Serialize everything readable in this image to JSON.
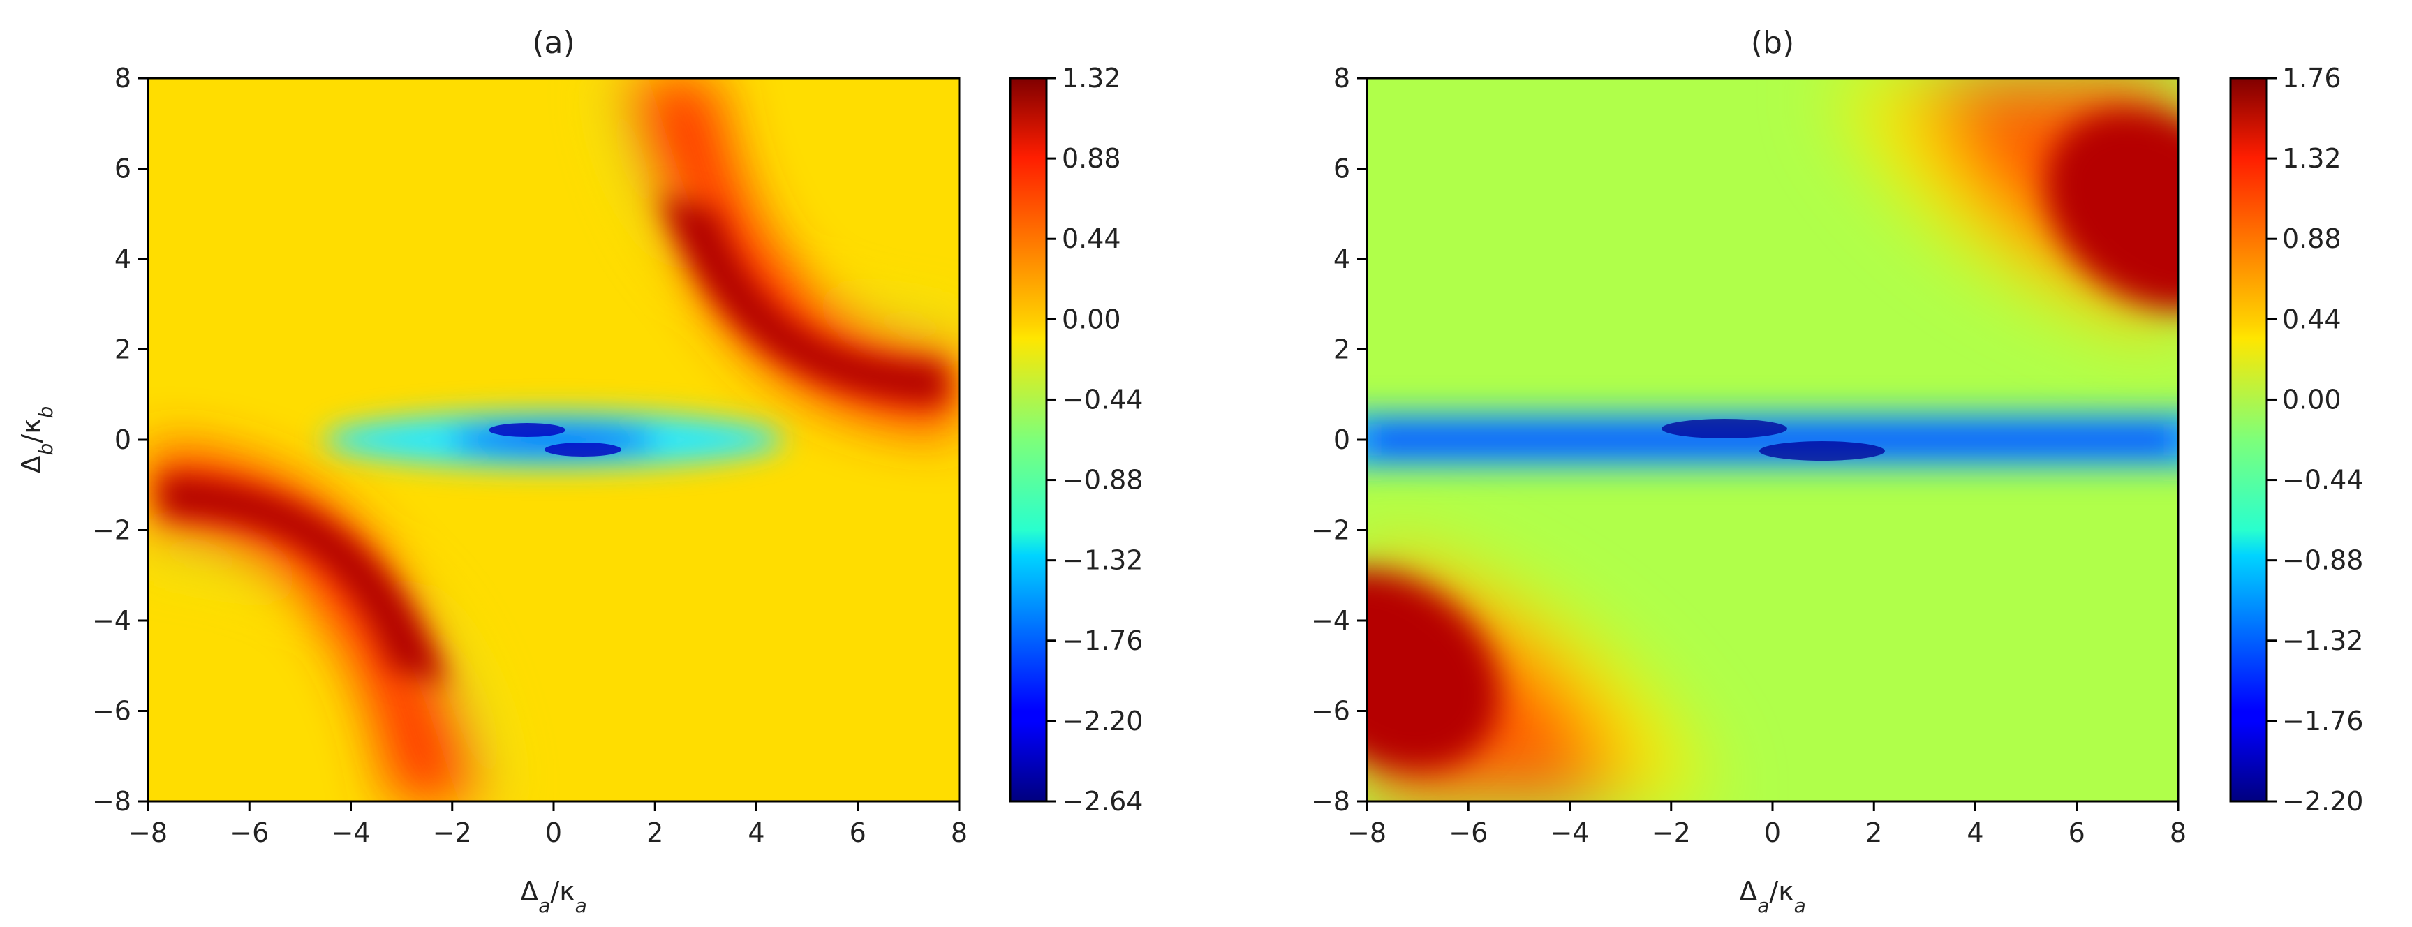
{
  "chart_data": [
    {
      "type": "heatmap",
      "title": "(a)",
      "xlabel": "Δa/κa",
      "ylabel": "Δb/κb",
      "xlim": [
        -8,
        8
      ],
      "ylim": [
        -8,
        8
      ],
      "xticks": [
        "−8",
        "−6",
        "−4",
        "−2",
        "0",
        "2",
        "4",
        "6",
        "8"
      ],
      "yticks": [
        "8",
        "6",
        "4",
        "2",
        "0",
        "−2",
        "−4",
        "−6",
        "−8"
      ],
      "colorbar": {
        "min": -2.64,
        "max": 1.32,
        "ticks": [
          "1.32",
          "0.88",
          "0.44",
          "0.00",
          "−0.44",
          "−0.88",
          "−1.32",
          "−1.76",
          "−2.20",
          "−2.64"
        ]
      },
      "colormap": "jet",
      "features": {
        "red_lobes": [
          {
            "x": 3.5,
            "y": 1.8,
            "value": 1.32
          },
          {
            "x": -3.5,
            "y": -1.8,
            "value": 1.32
          }
        ],
        "blue_band": {
          "y": 0,
          "x_range": [
            -3,
            3
          ],
          "min_value": -2.64
        }
      }
    },
    {
      "type": "heatmap",
      "title": "(b)",
      "xlabel": "Δa/κa",
      "ylabel": "",
      "xlim": [
        -8,
        8
      ],
      "ylim": [
        -8,
        8
      ],
      "xticks": [
        "−8",
        "−6",
        "−4",
        "−2",
        "0",
        "2",
        "4",
        "6",
        "8"
      ],
      "yticks": [
        "8",
        "6",
        "4",
        "2",
        "0",
        "−2",
        "−4",
        "−6",
        "−8"
      ],
      "colorbar": {
        "min": -2.2,
        "max": 1.76,
        "ticks": [
          "1.76",
          "1.32",
          "0.88",
          "0.44",
          "0.00",
          "−0.44",
          "−0.88",
          "−1.32",
          "−1.76",
          "−2.20"
        ]
      },
      "colormap": "jet",
      "features": {
        "red_lobes": [
          {
            "x": 7.5,
            "y": 4,
            "value": 1.76
          },
          {
            "x": -7.5,
            "y": -4,
            "value": 1.76
          }
        ],
        "blue_band": {
          "y": 0,
          "x_range": [
            -8,
            8
          ],
          "min_value": -2.2
        }
      }
    }
  ]
}
